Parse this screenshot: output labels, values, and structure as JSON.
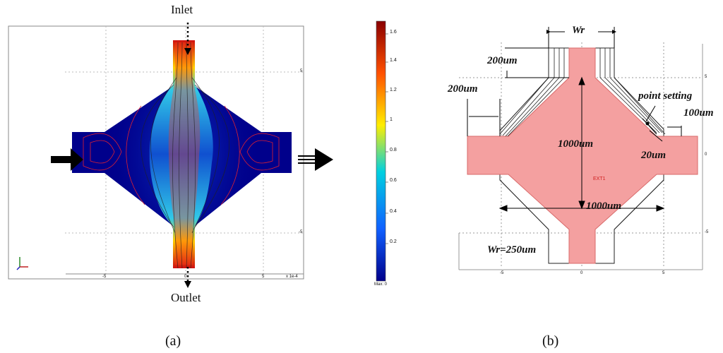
{
  "panel_a": {
    "inlet_label": "Inlet",
    "outlet_label": "Outlet",
    "colorbar_ticks": [
      "1.6",
      "1.4",
      "1.2",
      "1",
      "0.8",
      "0.6",
      "0.4",
      "0.2"
    ],
    "colorbar_unit": "Max: 0",
    "x_ticks": [
      "-5",
      "0",
      "5"
    ],
    "y_ticks": [
      "5",
      "-5"
    ],
    "x_scale": "x 1e-4",
    "caption": "(a)"
  },
  "panel_b": {
    "dimensions": {
      "wr_top": "Wr",
      "d200_top": "200um",
      "d200_left": "200um",
      "point_setting": "point setting",
      "d100": "100um",
      "d1000_vertical": "1000um",
      "d20": "20um",
      "d1000_horizontal": "1000um",
      "wr_bottom": "Wr=250um",
      "center_tag": "EXT1"
    },
    "x_ticks": [
      "-5",
      "0",
      "5"
    ],
    "y_ticks": [
      "5",
      "0",
      "-5"
    ],
    "caption": "(b)"
  },
  "colors": {
    "flow_high": "#b01010",
    "flow_low": "#00008b",
    "shape_fill": "#f4a0a0",
    "shape_stroke": "#d86a6a"
  }
}
